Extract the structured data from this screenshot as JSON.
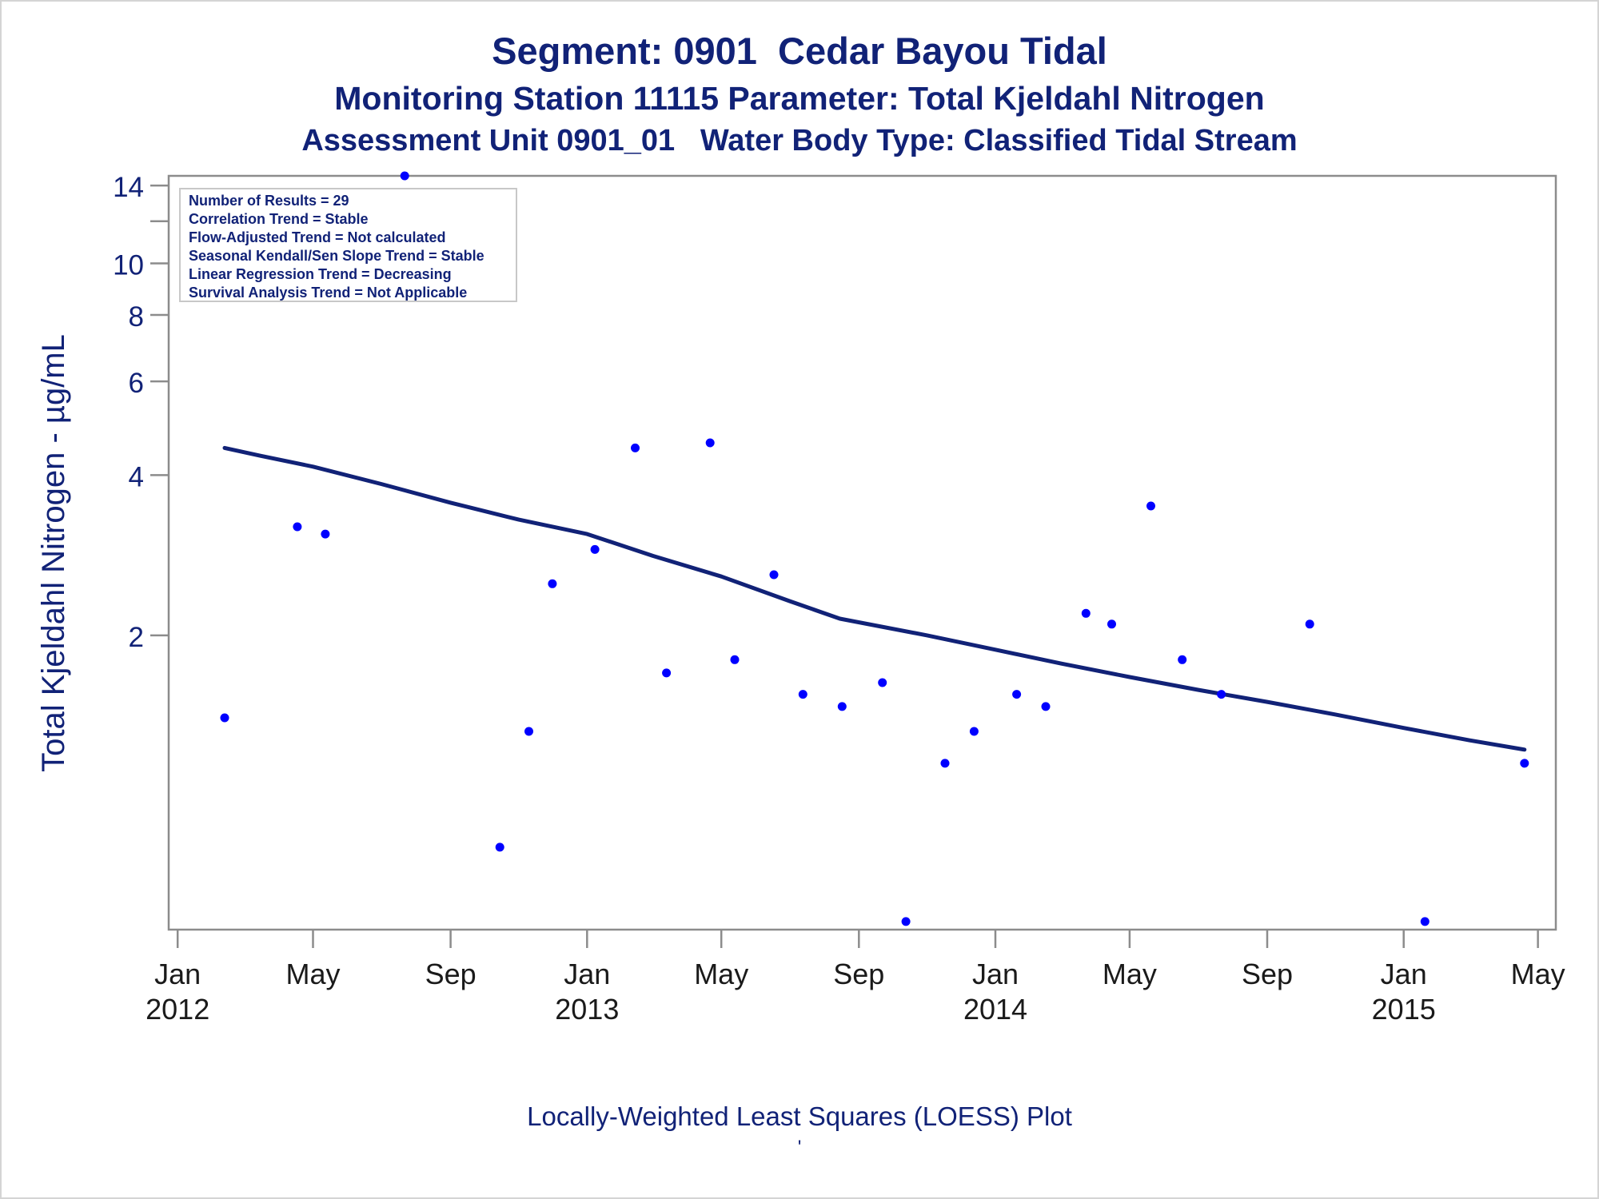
{
  "titles": {
    "line1": "Segment: 0901  Cedar Bayou Tidal",
    "line2": "Monitoring Station 11115 Parameter: Total Kjeldahl Nitrogen",
    "line3": "Assessment Unit 0901_01   Water Body Type: Classified Tidal Stream"
  },
  "footnote": "Locally-Weighted Least Squares (LOESS) Plot",
  "footnote_mark": "'",
  "chart_data": {
    "type": "scatter",
    "title": "Segment: 0901  Cedar Bayou Tidal",
    "xlabel": "",
    "ylabel": "Total Kjeldahl Nitrogen -  µg/mL",
    "y_scale": "log",
    "xlim": [
      "2011-12-24",
      "2015-05-17"
    ],
    "ylim": [
      0.56,
      14.6
    ],
    "grid": false,
    "x_ticks": [
      {
        "date": "2012-01-01",
        "label1": "Jan",
        "label2": "2012"
      },
      {
        "date": "2012-05-01",
        "label1": "May",
        "label2": ""
      },
      {
        "date": "2012-09-01",
        "label1": "Sep",
        "label2": ""
      },
      {
        "date": "2013-01-01",
        "label1": "Jan",
        "label2": "2013"
      },
      {
        "date": "2013-05-01",
        "label1": "May",
        "label2": ""
      },
      {
        "date": "2013-09-01",
        "label1": "Sep",
        "label2": ""
      },
      {
        "date": "2014-01-01",
        "label1": "Jan",
        "label2": "2014"
      },
      {
        "date": "2014-05-01",
        "label1": "May",
        "label2": ""
      },
      {
        "date": "2014-09-01",
        "label1": "Sep",
        "label2": ""
      },
      {
        "date": "2015-01-01",
        "label1": "Jan",
        "label2": "2015"
      },
      {
        "date": "2015-05-01",
        "label1": "May",
        "label2": ""
      }
    ],
    "y_ticks": [
      {
        "value": 2,
        "label": "2"
      },
      {
        "value": 4,
        "label": "4"
      },
      {
        "value": 6,
        "label": "6"
      },
      {
        "value": 8,
        "label": "8"
      },
      {
        "value": 10,
        "label": "10"
      },
      {
        "value": 12,
        "label": ""
      },
      {
        "value": 14,
        "label": "14"
      }
    ],
    "legend_box": {
      "placement": "top-left",
      "lines": [
        "Number of Results = 29",
        "Correlation Trend = Stable",
        "Flow-Adjusted Trend = Not calculated",
        "Seasonal Kendall/Sen Slope Trend = Stable",
        "Linear Regression Trend = Decreasing",
        "Survival Analysis Trend = Not Applicable"
      ]
    },
    "series": [
      {
        "type": "scatter",
        "color": "#0000ff",
        "points": [
          {
            "x": "2012-02-12",
            "y": 1.4
          },
          {
            "x": "2012-04-17",
            "y": 3.2
          },
          {
            "x": "2012-05-12",
            "y": 3.1
          },
          {
            "x": "2012-07-22",
            "y": 14.6
          },
          {
            "x": "2012-10-15",
            "y": 0.8
          },
          {
            "x": "2012-11-10",
            "y": 1.32
          },
          {
            "x": "2012-12-01",
            "y": 2.5
          },
          {
            "x": "2013-01-08",
            "y": 2.9
          },
          {
            "x": "2013-02-13",
            "y": 4.5
          },
          {
            "x": "2013-03-13",
            "y": 1.7
          },
          {
            "x": "2013-04-21",
            "y": 4.6
          },
          {
            "x": "2013-05-13",
            "y": 1.8
          },
          {
            "x": "2013-06-17",
            "y": 2.6
          },
          {
            "x": "2013-07-13",
            "y": 1.55
          },
          {
            "x": "2013-08-17",
            "y": 1.47
          },
          {
            "x": "2013-09-22",
            "y": 1.63
          },
          {
            "x": "2013-10-13",
            "y": 0.58
          },
          {
            "x": "2013-11-17",
            "y": 1.15
          },
          {
            "x": "2013-12-13",
            "y": 1.32
          },
          {
            "x": "2014-01-20",
            "y": 1.55
          },
          {
            "x": "2014-02-15",
            "y": 1.47
          },
          {
            "x": "2014-03-23",
            "y": 2.2
          },
          {
            "x": "2014-04-15",
            "y": 2.1
          },
          {
            "x": "2014-05-20",
            "y": 3.5
          },
          {
            "x": "2014-06-17",
            "y": 1.8
          },
          {
            "x": "2014-07-22",
            "y": 1.55
          },
          {
            "x": "2014-10-09",
            "y": 2.1
          },
          {
            "x": "2015-01-20",
            "y": 0.58
          },
          {
            "x": "2015-04-19",
            "y": 1.15
          }
        ]
      },
      {
        "type": "line",
        "color": "#112277",
        "points": [
          {
            "x": "2012-02-12",
            "y": 4.5
          },
          {
            "x": "2012-03-15",
            "y": 4.35
          },
          {
            "x": "2012-05-01",
            "y": 4.15
          },
          {
            "x": "2012-07-01",
            "y": 3.85
          },
          {
            "x": "2012-09-01",
            "y": 3.55
          },
          {
            "x": "2012-11-01",
            "y": 3.3
          },
          {
            "x": "2013-01-01",
            "y": 3.1
          },
          {
            "x": "2013-03-01",
            "y": 2.82
          },
          {
            "x": "2013-05-01",
            "y": 2.58
          },
          {
            "x": "2013-07-01",
            "y": 2.32
          },
          {
            "x": "2013-08-15",
            "y": 2.15
          },
          {
            "x": "2013-11-01",
            "y": 2.0
          },
          {
            "x": "2014-01-01",
            "y": 1.88
          },
          {
            "x": "2014-03-01",
            "y": 1.77
          },
          {
            "x": "2014-05-01",
            "y": 1.67
          },
          {
            "x": "2014-07-01",
            "y": 1.58
          },
          {
            "x": "2014-09-01",
            "y": 1.5
          },
          {
            "x": "2014-11-01",
            "y": 1.42
          },
          {
            "x": "2015-01-01",
            "y": 1.34
          },
          {
            "x": "2015-03-01",
            "y": 1.27
          },
          {
            "x": "2015-04-19",
            "y": 1.22
          }
        ]
      }
    ]
  }
}
